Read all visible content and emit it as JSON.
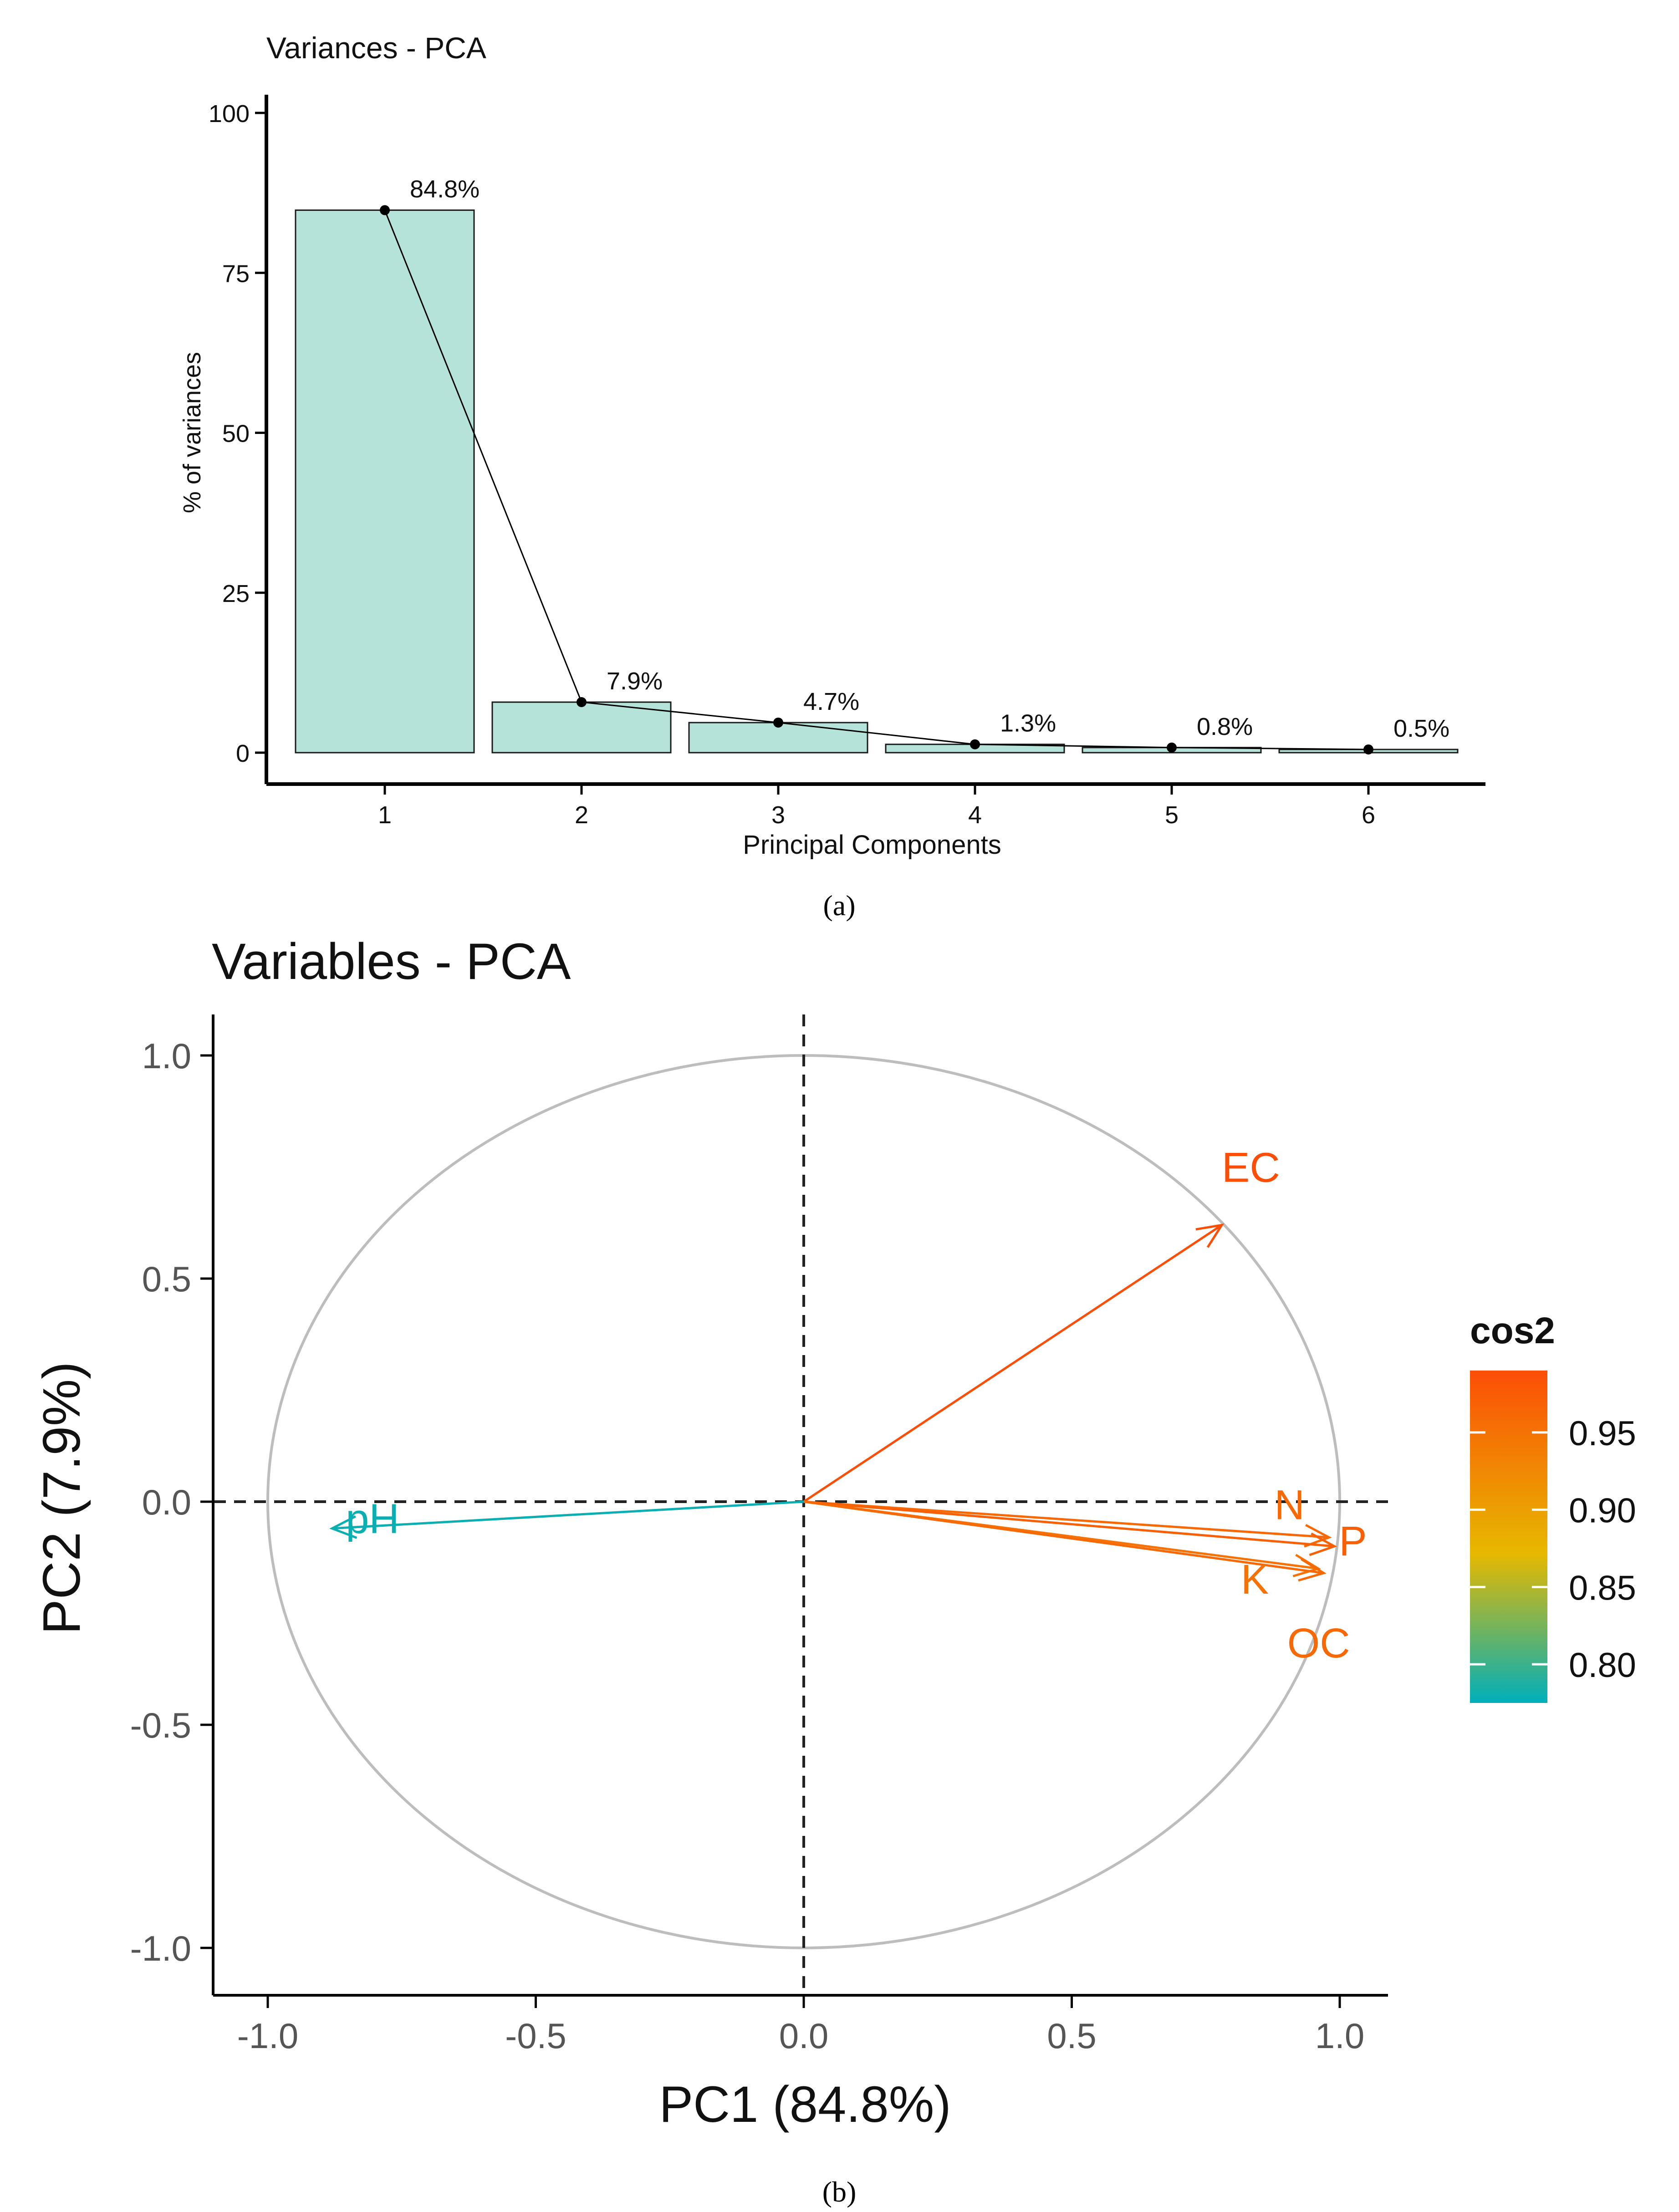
{
  "chart_data": [
    {
      "type": "bar",
      "title": "Variances - PCA",
      "xlabel": "Principal Components",
      "ylabel": "% of variances",
      "categories": [
        "1",
        "2",
        "3",
        "4",
        "5",
        "6"
      ],
      "values": [
        84.8,
        7.9,
        4.7,
        1.3,
        0.8,
        0.5
      ],
      "value_labels": [
        "84.8%",
        "7.9%",
        "4.7%",
        "1.3%",
        "0.8%",
        "0.5%"
      ],
      "ylim": [
        0,
        100
      ],
      "yticks": [
        0,
        25,
        50,
        75,
        100
      ],
      "overlay": "line",
      "bar_color": "#b6e3d9",
      "caption": "(a)"
    },
    {
      "type": "scatter",
      "subtype": "pca-variable-correlation-circle",
      "title": "Variables - PCA",
      "xlabel": "PC1 (84.8%)",
      "ylabel": "PC2 (7.9%)",
      "xlim": [
        -1.0,
        1.0
      ],
      "ylim": [
        -1.0,
        1.0
      ],
      "xticks": [
        "-1.0",
        "-0.5",
        "0.0",
        "0.5",
        "1.0"
      ],
      "yticks": [
        "1.0",
        "0.5",
        "0.0",
        "-0.5",
        "-1.0"
      ],
      "variables": [
        {
          "name": "EC",
          "x": 0.78,
          "y": 0.62,
          "cos2": 0.99
        },
        {
          "name": "N",
          "x": 0.98,
          "y": -0.08,
          "cos2": 0.96
        },
        {
          "name": "P",
          "x": 0.99,
          "y": -0.1,
          "cos2": 0.97
        },
        {
          "name": "K",
          "x": 0.96,
          "y": -0.15,
          "cos2": 0.95
        },
        {
          "name": "OC",
          "x": 0.97,
          "y": -0.16,
          "cos2": 0.96
        },
        {
          "name": "pH",
          "x": -0.88,
          "y": -0.06,
          "cos2": 0.78
        }
      ],
      "legend": {
        "title": "cos2",
        "ticks": [
          "0.95",
          "0.90",
          "0.85",
          "0.80"
        ],
        "tick_values": [
          0.95,
          0.9,
          0.85,
          0.8
        ],
        "range": [
          0.775,
          0.99
        ],
        "colors": [
          "#fc4e07",
          "#e7b800",
          "#00afbb"
        ],
        "placement": "right"
      },
      "caption": "(b)"
    }
  ]
}
